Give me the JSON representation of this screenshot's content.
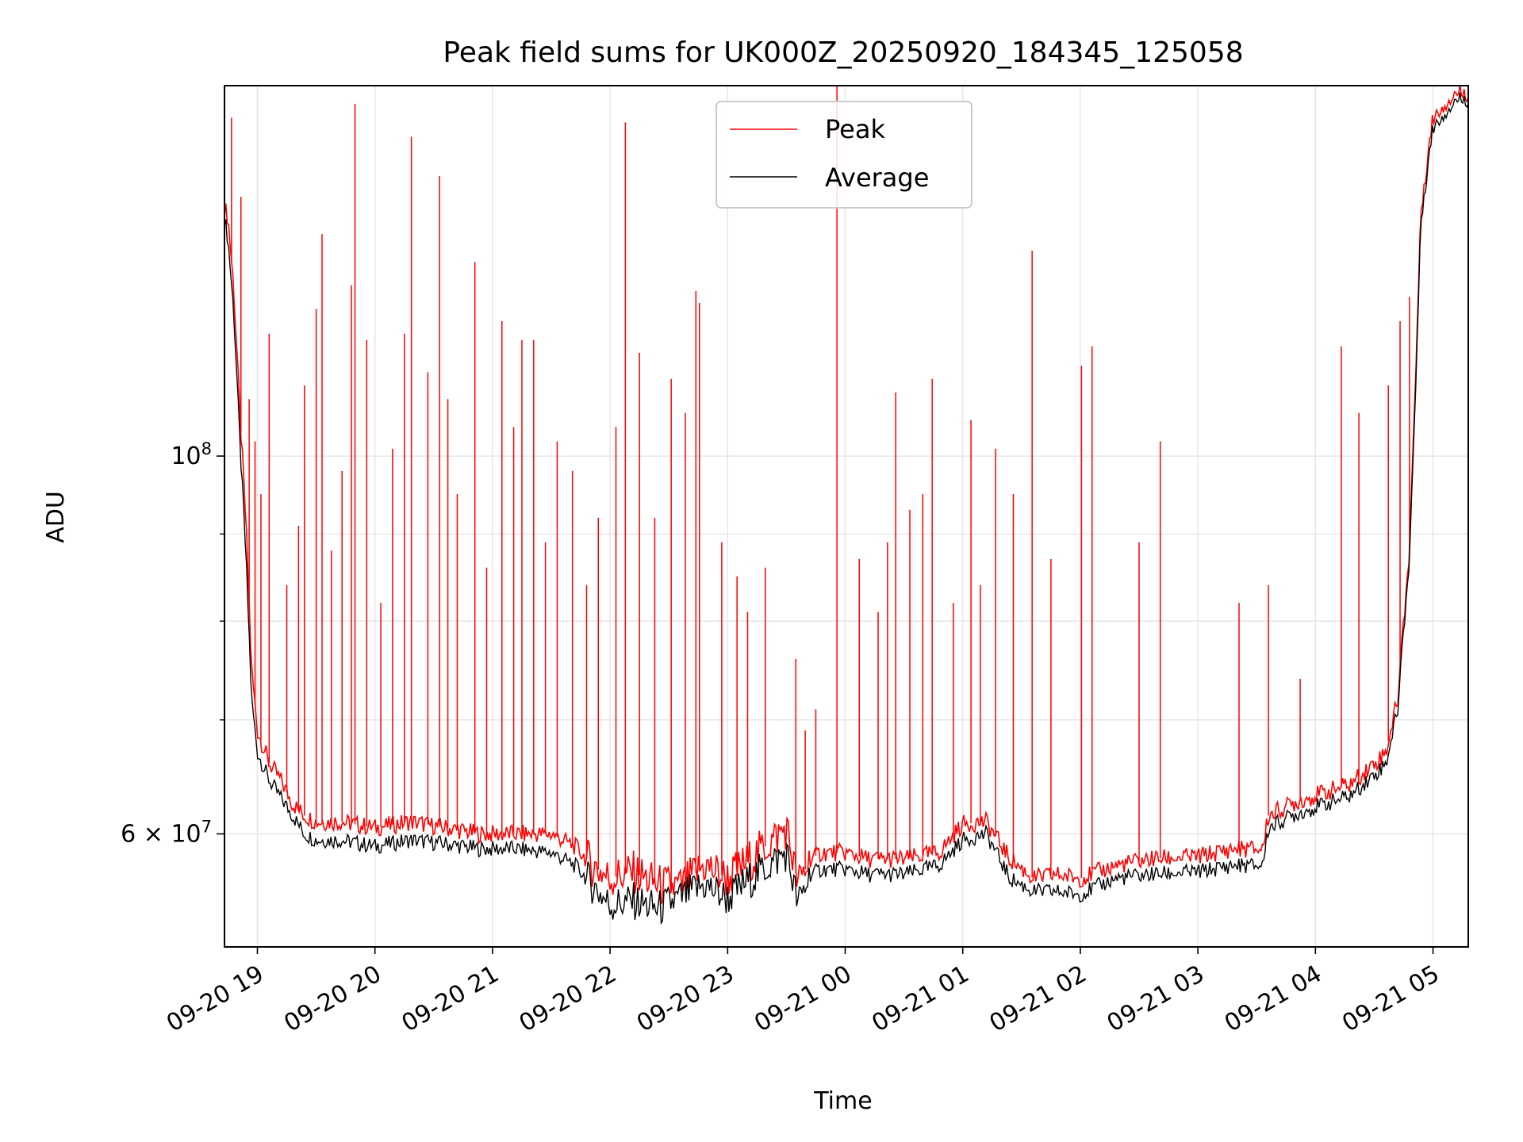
{
  "chart_data": {
    "type": "line",
    "title": "Peak field sums for UK000Z_20250920_184345_125058",
    "xlabel": "Time",
    "ylabel": "ADU",
    "yscale": "log",
    "ylim": [
      51500000,
      165000000
    ],
    "xlim": [
      18.72,
      29.3
    ],
    "grid": true,
    "legend_location": "upper center",
    "x_ticks": [
      {
        "value": 19,
        "label": "09-20 19"
      },
      {
        "value": 20,
        "label": "09-20 20"
      },
      {
        "value": 21,
        "label": "09-20 21"
      },
      {
        "value": 22,
        "label": "09-20 22"
      },
      {
        "value": 23,
        "label": "09-20 23"
      },
      {
        "value": 24,
        "label": "09-21 00"
      },
      {
        "value": 25,
        "label": "09-21 01"
      },
      {
        "value": 26,
        "label": "09-21 02"
      },
      {
        "value": 27,
        "label": "09-21 03"
      },
      {
        "value": 28,
        "label": "09-21 04"
      },
      {
        "value": 29,
        "label": "09-21 05"
      }
    ],
    "y_major_ticks": [
      {
        "value": 100000000,
        "base": "10",
        "exp": "8"
      },
      {
        "value": 60000000,
        "mant": "6",
        "times": "×",
        "base": "10",
        "exp": "7"
      }
    ],
    "y_minor_ticks": [
      70000000,
      80000000,
      90000000
    ],
    "x": [
      18.72,
      18.75,
      18.8,
      18.85,
      18.9,
      18.95,
      19.0,
      19.1,
      19.2,
      19.3,
      19.4,
      19.5,
      19.7,
      20.0,
      20.3,
      20.6,
      20.9,
      21.2,
      21.5,
      21.7,
      21.85,
      22.0,
      22.2,
      22.4,
      22.6,
      22.8,
      23.0,
      23.2,
      23.5,
      23.6,
      23.7,
      23.8,
      24.0,
      24.2,
      24.5,
      24.8,
      25.0,
      25.2,
      25.4,
      25.6,
      25.8,
      26.0,
      26.3,
      26.6,
      27.0,
      27.3,
      27.55,
      27.6,
      27.8,
      28.0,
      28.3,
      28.5,
      28.6,
      28.7,
      28.8,
      28.85,
      28.9,
      29.0,
      29.1,
      29.2,
      29.3
    ],
    "series": [
      {
        "name": "Peak",
        "color": "#ff0000",
        "values": [
          140000000,
          138000000,
          125000000,
          106000000,
          92000000,
          75000000,
          69000000,
          66000000,
          64500000,
          62500000,
          61500000,
          61000000,
          61000000,
          60500000,
          61000000,
          60500000,
          60000000,
          60000000,
          60000000,
          59000000,
          57500000,
          56500000,
          57000000,
          56000000,
          55800000,
          57500000,
          56500000,
          58000000,
          60500000,
          56000000,
          58000000,
          58500000,
          58500000,
          58000000,
          58000000,
          58500000,
          60800000,
          61000000,
          58000000,
          56500000,
          56800000,
          56500000,
          57500000,
          58000000,
          58200000,
          58800000,
          58800000,
          61500000,
          62500000,
          63200000,
          64200000,
          66000000,
          67000000,
          72000000,
          88000000,
          110000000,
          140000000,
          158000000,
          161000000,
          163500000,
          163500000
        ]
      },
      {
        "name": "Average",
        "color": "#000000",
        "values": [
          138000000,
          134000000,
          121000000,
          102000000,
          88000000,
          72000000,
          67000000,
          64500000,
          63000000,
          61500000,
          60000000,
          59500000,
          59500000,
          59000000,
          59500000,
          59200000,
          58800000,
          58800000,
          58500000,
          57500000,
          56000000,
          54500000,
          54800000,
          54200000,
          55000000,
          56000000,
          55000000,
          56500000,
          58500000,
          54500000,
          56800000,
          57200000,
          57200000,
          56800000,
          56800000,
          57500000,
          59500000,
          60000000,
          56500000,
          55500000,
          55500000,
          55300000,
          56500000,
          56800000,
          57000000,
          57500000,
          57500000,
          60500000,
          61500000,
          62200000,
          63200000,
          65000000,
          66000000,
          71000000,
          87000000,
          108000000,
          138000000,
          156000000,
          159000000,
          162000000,
          162000000
        ]
      }
    ],
    "peak_spikes": [
      {
        "x": 18.78,
        "y": 158000000
      },
      {
        "x": 18.86,
        "y": 142000000
      },
      {
        "x": 18.93,
        "y": 108000000
      },
      {
        "x": 18.98,
        "y": 102000000
      },
      {
        "x": 19.03,
        "y": 95000000
      },
      {
        "x": 19.1,
        "y": 118000000
      },
      {
        "x": 19.25,
        "y": 84000000
      },
      {
        "x": 19.35,
        "y": 91000000
      },
      {
        "x": 19.4,
        "y": 110000000
      },
      {
        "x": 19.5,
        "y": 122000000
      },
      {
        "x": 19.55,
        "y": 135000000
      },
      {
        "x": 19.63,
        "y": 88000000
      },
      {
        "x": 19.72,
        "y": 98000000
      },
      {
        "x": 19.8,
        "y": 126000000
      },
      {
        "x": 19.83,
        "y": 161000000
      },
      {
        "x": 19.93,
        "y": 117000000
      },
      {
        "x": 20.05,
        "y": 82000000
      },
      {
        "x": 20.15,
        "y": 101000000
      },
      {
        "x": 20.25,
        "y": 118000000
      },
      {
        "x": 20.31,
        "y": 154000000
      },
      {
        "x": 20.45,
        "y": 112000000
      },
      {
        "x": 20.55,
        "y": 146000000
      },
      {
        "x": 20.62,
        "y": 108000000
      },
      {
        "x": 20.7,
        "y": 95000000
      },
      {
        "x": 20.85,
        "y": 130000000
      },
      {
        "x": 20.95,
        "y": 86000000
      },
      {
        "x": 21.08,
        "y": 120000000
      },
      {
        "x": 21.18,
        "y": 104000000
      },
      {
        "x": 21.25,
        "y": 117000000
      },
      {
        "x": 21.35,
        "y": 117000000
      },
      {
        "x": 21.45,
        "y": 89000000
      },
      {
        "x": 21.55,
        "y": 102000000
      },
      {
        "x": 21.68,
        "y": 98000000
      },
      {
        "x": 21.8,
        "y": 84000000
      },
      {
        "x": 21.9,
        "y": 92000000
      },
      {
        "x": 22.05,
        "y": 104000000
      },
      {
        "x": 22.13,
        "y": 157000000
      },
      {
        "x": 22.25,
        "y": 115000000
      },
      {
        "x": 22.38,
        "y": 92000000
      },
      {
        "x": 22.52,
        "y": 111000000
      },
      {
        "x": 22.64,
        "y": 106000000
      },
      {
        "x": 22.73,
        "y": 125000000
      },
      {
        "x": 22.76,
        "y": 123000000
      },
      {
        "x": 22.95,
        "y": 89000000
      },
      {
        "x": 23.08,
        "y": 85000000
      },
      {
        "x": 23.17,
        "y": 81000000
      },
      {
        "x": 23.32,
        "y": 86000000
      },
      {
        "x": 23.58,
        "y": 76000000
      },
      {
        "x": 23.66,
        "y": 69000000
      },
      {
        "x": 23.75,
        "y": 71000000
      },
      {
        "x": 23.93,
        "y": 165000000
      },
      {
        "x": 24.12,
        "y": 87000000
      },
      {
        "x": 24.28,
        "y": 81000000
      },
      {
        "x": 24.36,
        "y": 89000000
      },
      {
        "x": 24.43,
        "y": 109000000
      },
      {
        "x": 24.55,
        "y": 93000000
      },
      {
        "x": 24.66,
        "y": 95000000
      },
      {
        "x": 24.74,
        "y": 111000000
      },
      {
        "x": 24.92,
        "y": 82000000
      },
      {
        "x": 25.07,
        "y": 105000000
      },
      {
        "x": 25.15,
        "y": 84000000
      },
      {
        "x": 25.28,
        "y": 101000000
      },
      {
        "x": 25.43,
        "y": 95000000
      },
      {
        "x": 25.59,
        "y": 132000000
      },
      {
        "x": 25.75,
        "y": 87000000
      },
      {
        "x": 26.01,
        "y": 113000000
      },
      {
        "x": 26.1,
        "y": 116000000
      },
      {
        "x": 26.5,
        "y": 89000000
      },
      {
        "x": 26.68,
        "y": 102000000
      },
      {
        "x": 27.35,
        "y": 82000000
      },
      {
        "x": 27.6,
        "y": 84000000
      },
      {
        "x": 27.87,
        "y": 74000000
      },
      {
        "x": 28.22,
        "y": 116000000
      },
      {
        "x": 28.37,
        "y": 106000000
      },
      {
        "x": 28.62,
        "y": 110000000
      },
      {
        "x": 28.72,
        "y": 120000000
      },
      {
        "x": 28.8,
        "y": 124000000
      }
    ]
  }
}
